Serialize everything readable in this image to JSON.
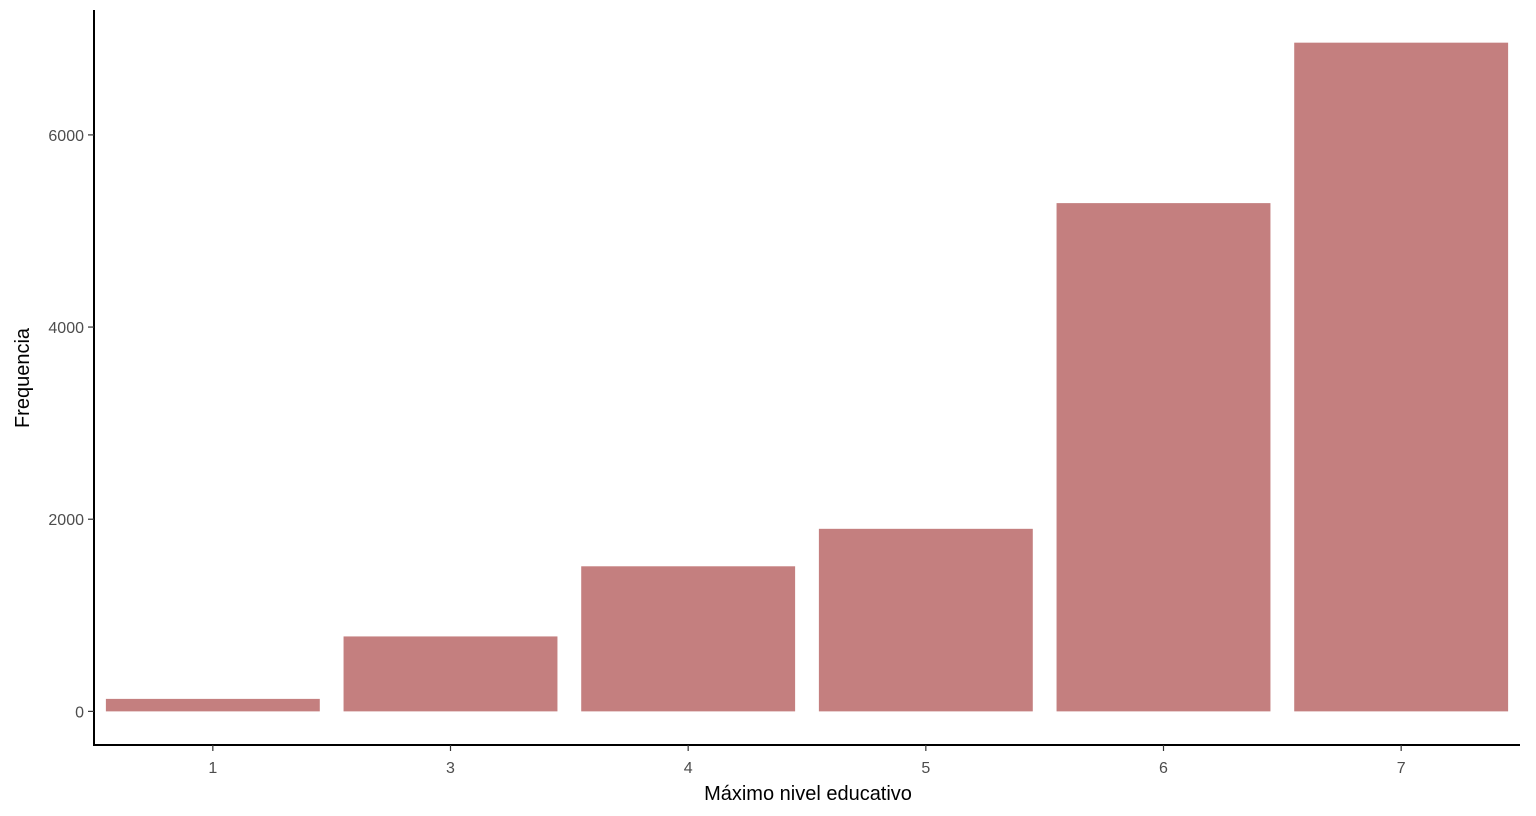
{
  "chart_data": {
    "type": "bar",
    "title": "",
    "xlabel": "Máximo nivel educativo",
    "ylabel": "Frequencia",
    "categories": [
      "1",
      "3",
      "4",
      "5",
      "6",
      "7"
    ],
    "values": [
      130,
      780,
      1510,
      1900,
      5290,
      6960
    ],
    "ylim": [
      -350,
      7300
    ],
    "yticks": [
      0,
      2000,
      4000,
      6000
    ],
    "ytick_labels": [
      "0",
      "2000",
      "4000",
      "6000"
    ],
    "grid": false,
    "legend": "none",
    "bar_color": "#c47f7f",
    "axis_color": "#000000",
    "tick_label_color": "#4d4d4d"
  }
}
